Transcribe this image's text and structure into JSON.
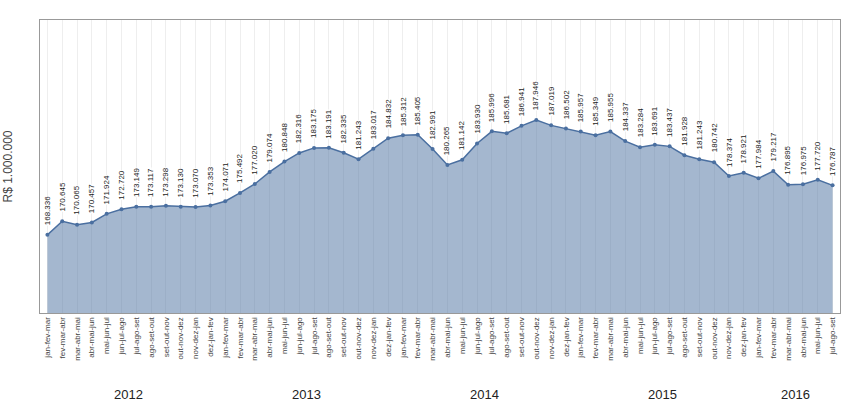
{
  "chart_data": {
    "type": "line",
    "ylabel": "R$ 1.000.000",
    "categories": [
      "jan-fev-mar",
      "fev-mar-abr",
      "mar-abr-mai",
      "abr-mai-jun",
      "mai-jun-jul",
      "jun-jul-ago",
      "jul-ago-set",
      "ago-set-out",
      "set-out-nov",
      "out-nov-dez",
      "nov-dez-jan",
      "dez-jan-fev",
      "jan-fev-mar",
      "fev-mar-abr",
      "mar-abr-mai",
      "abr-mai-jun",
      "mai-jun-jul",
      "jun-jul-ago",
      "jul-ago-set",
      "ago-set-out",
      "set-out-nov",
      "out-nov-dez",
      "nov-dez-jan",
      "dez-jan-fev",
      "jan-fev-mar",
      "fev-mar-abr",
      "mar-abr-mai",
      "abr-mai-jun",
      "mai-jun-jul",
      "jun-jul-ago",
      "jul-ago-set",
      "ago-set-out",
      "set-out-nov",
      "out-nov-dez",
      "nov-dez-jan",
      "dez-jan-fev",
      "jan-fev-mar",
      "fev-mar-abr",
      "mar-abr-mai",
      "abr-mai-jun",
      "mai-jun-jul",
      "jun-jul-ago",
      "jul-ago-set",
      "ago-set-out",
      "set-out-nov",
      "out-nov-dez",
      "nov-dez-jan",
      "dez-jan-fev",
      "jan-fev-mar",
      "fev-mar-abr",
      "mar-abr-mai",
      "abr-mai-jun",
      "mai-jun-jul",
      "jul-ago-set"
    ],
    "values": [
      168336,
      170645,
      170065,
      170457,
      171924,
      172720,
      173149,
      173117,
      173298,
      173130,
      173070,
      173353,
      174071,
      175492,
      177020,
      179074,
      180848,
      182316,
      183175,
      183191,
      182335,
      181243,
      183017,
      184832,
      185312,
      185405,
      182991,
      180265,
      181142,
      183930,
      185996,
      185681,
      186941,
      187946,
      187019,
      186502,
      185957,
      185349,
      185955,
      184337,
      183284,
      183691,
      183437,
      181928,
      181243,
      180742,
      178374,
      178921,
      177984,
      179217,
      176895,
      176975,
      177720,
      176787
    ],
    "value_labels": [
      "168.336",
      "170.645",
      "170.065",
      "170.457",
      "171.924",
      "172.720",
      "173.149",
      "173.117",
      "173.298",
      "173.130",
      "173.070",
      "173.353",
      "174.071",
      "175.492",
      "177.020",
      "179.074",
      "180.848",
      "182.316",
      "183.175",
      "183.191",
      "182.335",
      "181.243",
      "183.017",
      "184.832",
      "185.312",
      "185.405",
      "182.991",
      "180.265",
      "181.142",
      "183.930",
      "185.996",
      "185.681",
      "186.941",
      "187.946",
      "187.019",
      "186.502",
      "185.957",
      "185.349",
      "185.955",
      "184.337",
      "183.284",
      "183.691",
      "183.437",
      "181.928",
      "181.243",
      "180.742",
      "178.374",
      "178.921",
      "177.984",
      "179.217",
      "176.895",
      "176.975",
      "177.720",
      "176.787"
    ],
    "annotations": [
      {
        "text": "2012",
        "x": 5.5
      },
      {
        "text": "2013",
        "x": 17.5
      },
      {
        "text": "2014",
        "x": 29.5
      },
      {
        "text": "2015",
        "x": 41.5
      },
      {
        "text": "2016",
        "x": 50.5
      }
    ],
    "color": "#4a6fa0",
    "ylim": [
      155000,
      205000
    ],
    "grid": true,
    "data_labels": true,
    "tick_labels": "x"
  }
}
